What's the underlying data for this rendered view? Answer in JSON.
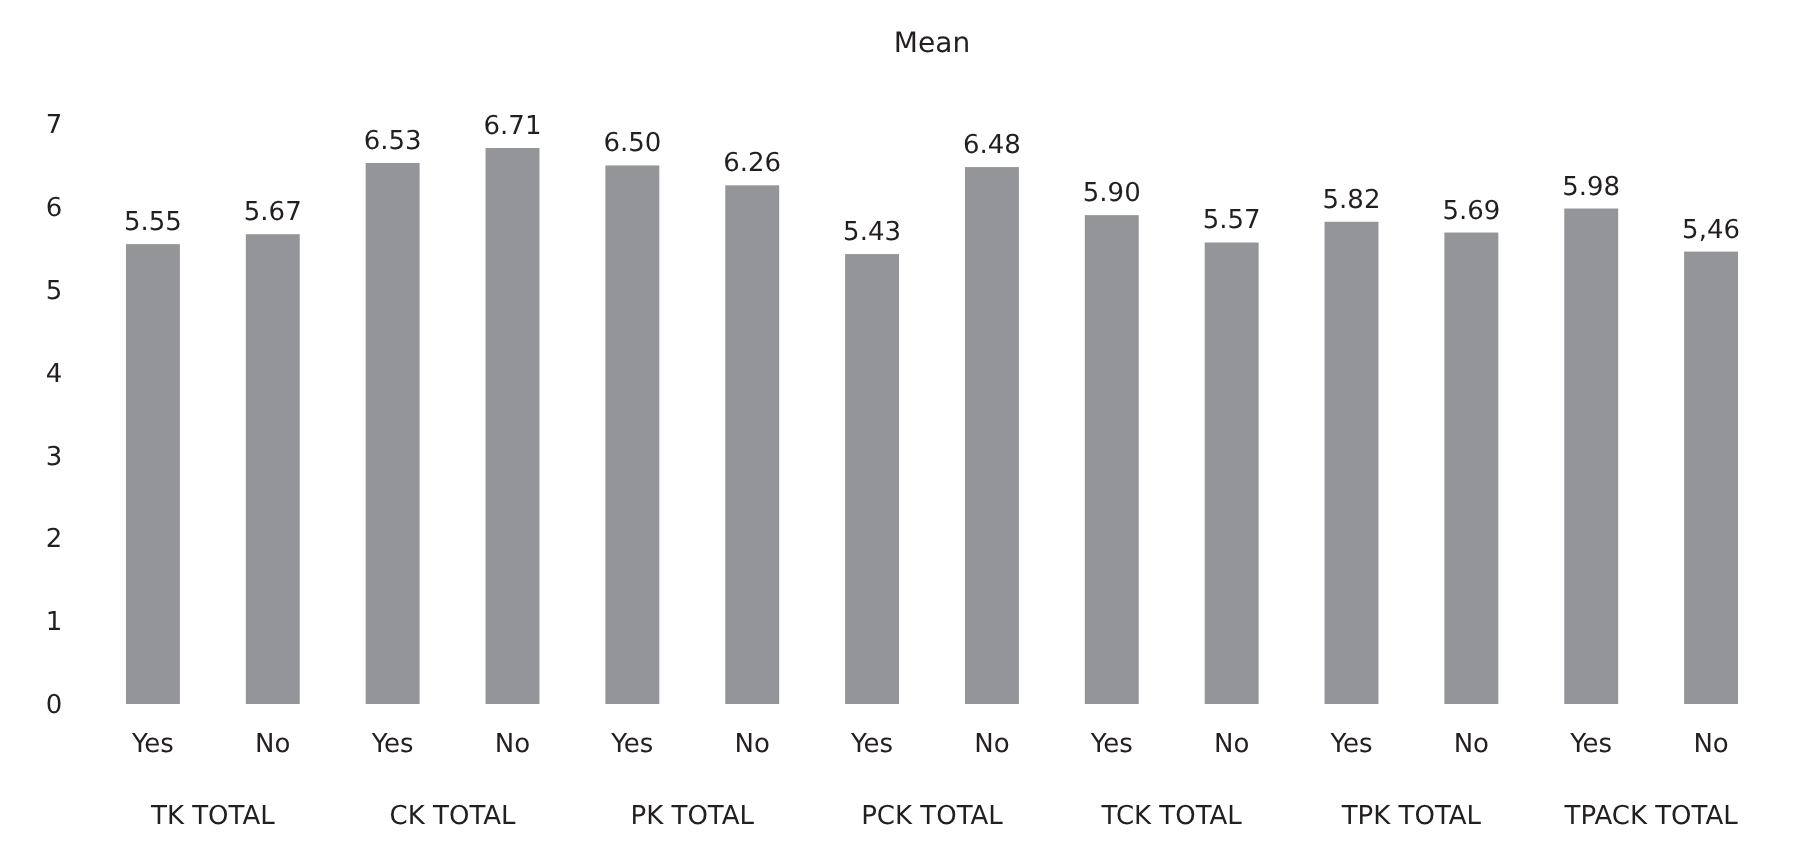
{
  "chart_data": {
    "type": "bar",
    "title": "Mean",
    "categories": [
      "Yes",
      "No",
      "Yes",
      "No",
      "Yes",
      "No",
      "Yes",
      "No",
      "Yes",
      "No",
      "Yes",
      "No",
      "Yes",
      "No"
    ],
    "values": [
      5.55,
      5.67,
      6.53,
      6.71,
      6.5,
      6.26,
      5.43,
      6.48,
      5.9,
      5.57,
      5.82,
      5.69,
      5.98,
      5.46
    ],
    "value_labels": [
      "5.55",
      "5.67",
      "6.53",
      "6.71",
      "6.50",
      "6.26",
      "5.43",
      "6.48",
      "5.90",
      "5.57",
      "5.82",
      "5.69",
      "5.98",
      "5,46"
    ],
    "color": "#939598",
    "ylim": [
      0,
      7
    ],
    "yticks": [
      0,
      1,
      2,
      3,
      4,
      5,
      6,
      7
    ],
    "grid": false,
    "annotations": [
      "TK TOTAL",
      "CK TOTAL",
      "PK TOTAL",
      "PCK TOTAL",
      "TCK TOTAL",
      "TPK TOTAL",
      "TPACK TOTAL"
    ]
  }
}
